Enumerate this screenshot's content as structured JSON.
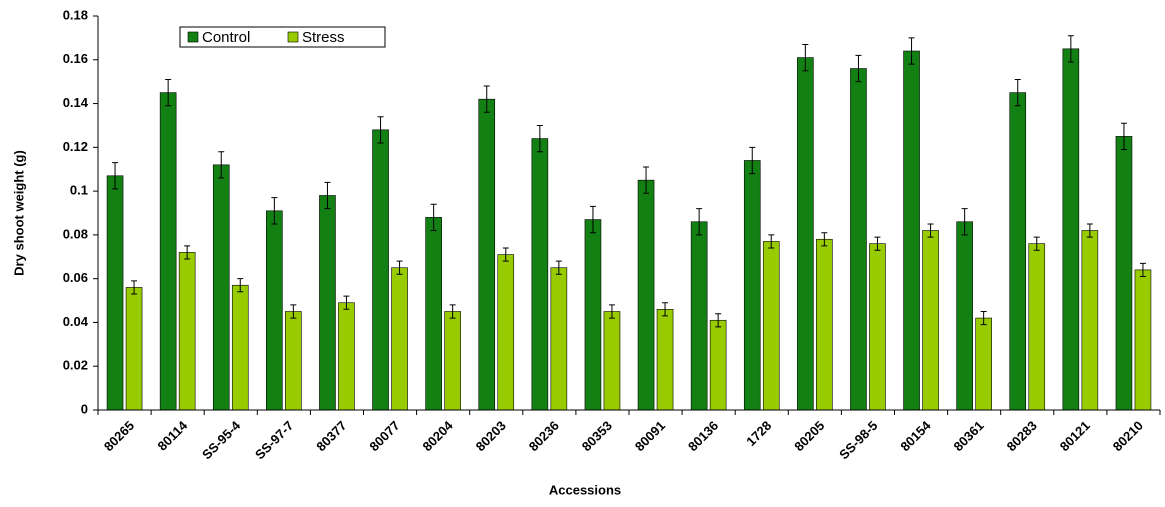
{
  "chart_data": {
    "type": "bar",
    "x_label": "Accessions",
    "y_label": "Dry shoot weight (g)",
    "categories": [
      "80265",
      "80114",
      "SS-95-4",
      "SS-97-7",
      "80377",
      "80077",
      "80204",
      "80203",
      "80236",
      "80353",
      "80091",
      "80136",
      "1728",
      "80205",
      "SS-98-5",
      "80154",
      "80361",
      "80283",
      "80121",
      "80210"
    ],
    "series": [
      {
        "name": "Control",
        "color": "#138013",
        "values": [
          0.107,
          0.145,
          0.112,
          0.091,
          0.098,
          0.128,
          0.088,
          0.142,
          0.124,
          0.087,
          0.105,
          0.086,
          0.114,
          0.161,
          0.156,
          0.164,
          0.086,
          0.145,
          0.165,
          0.125
        ],
        "errors": [
          0.006,
          0.006,
          0.006,
          0.006,
          0.006,
          0.006,
          0.006,
          0.006,
          0.006,
          0.006,
          0.006,
          0.006,
          0.006,
          0.006,
          0.006,
          0.006,
          0.006,
          0.006,
          0.006,
          0.006
        ]
      },
      {
        "name": "Stress",
        "color": "#99cc00",
        "values": [
          0.056,
          0.072,
          0.057,
          0.045,
          0.049,
          0.065,
          0.045,
          0.071,
          0.065,
          0.045,
          0.046,
          0.041,
          0.077,
          0.078,
          0.076,
          0.082,
          0.042,
          0.076,
          0.082,
          0.064
        ],
        "errors": [
          0.003,
          0.003,
          0.003,
          0.003,
          0.003,
          0.003,
          0.003,
          0.003,
          0.003,
          0.003,
          0.003,
          0.003,
          0.003,
          0.003,
          0.003,
          0.003,
          0.003,
          0.003,
          0.003,
          0.003
        ]
      }
    ],
    "ylim": [
      0,
      0.18
    ],
    "yticks": [
      0,
      0.02,
      0.04,
      0.06,
      0.08,
      0.1,
      0.12,
      0.14,
      0.16,
      0.18
    ],
    "legend": "top-left",
    "grid": false
  }
}
